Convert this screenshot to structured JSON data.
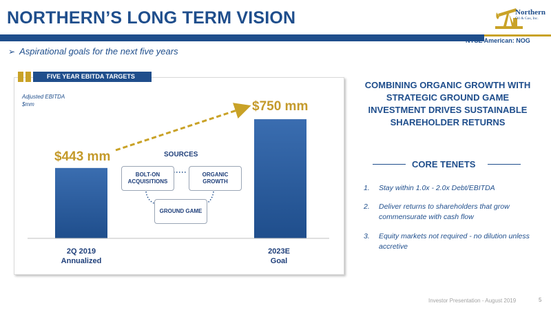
{
  "header": {
    "title": "NORTHERN’S LONG TERM VISION",
    "logo_name": "Northern",
    "logo_sub": "Oil & Gas, Inc.",
    "ticker": "NYSE American: NOG"
  },
  "subtitle": "Aspirational goals for the next five years",
  "panel": {
    "tab": "FIVE YEAR EBITDA TARGETS",
    "measure_line1": "Adjusted EBITDA",
    "measure_line2": "$mm"
  },
  "chart_data": {
    "type": "bar",
    "categories": [
      "2Q 2019 Annualized",
      "2023E Goal"
    ],
    "category_lines": [
      [
        "2Q 2019",
        "Annualized"
      ],
      [
        "2023E",
        "Goal"
      ]
    ],
    "values": [
      443,
      750
    ],
    "data_labels": [
      "$443 mm",
      "$750 mm"
    ],
    "title": "FIVE YEAR EBITDA TARGETS",
    "ylabel": "Adjusted EBITDA $mm",
    "colors": {
      "bar": "#1f4e8c",
      "label": "#c49a2b",
      "arrow": "#c9a227"
    },
    "grid": false,
    "annotations": {
      "sources_title": "SOURCES",
      "sources": [
        "BOLT-ON ACQUISITIONS",
        "ORGANIC GROWTH",
        "GROUND GAME"
      ]
    }
  },
  "right": {
    "headline": "COMBINING ORGANIC GROWTH WITH STRATEGIC GROUND GAME INVESTMENT DRIVES SUSTAINABLE SHAREHOLDER RETURNS",
    "tenets_title": "CORE TENETS",
    "tenets": [
      {
        "num": "1.",
        "text": "Stay within 1.0x - 2.0x Debt/EBITDA"
      },
      {
        "num": "2.",
        "text": "Deliver returns to shareholders that grow commensurate with cash flow"
      },
      {
        "num": "3.",
        "text": "Equity markets not required - no dilution unless accretive"
      }
    ]
  },
  "footer": {
    "text": "Investor Presentation - August 2019",
    "page": "5"
  },
  "colors": {
    "brand_blue": "#1f4e8c",
    "brand_gold": "#c9a227"
  }
}
